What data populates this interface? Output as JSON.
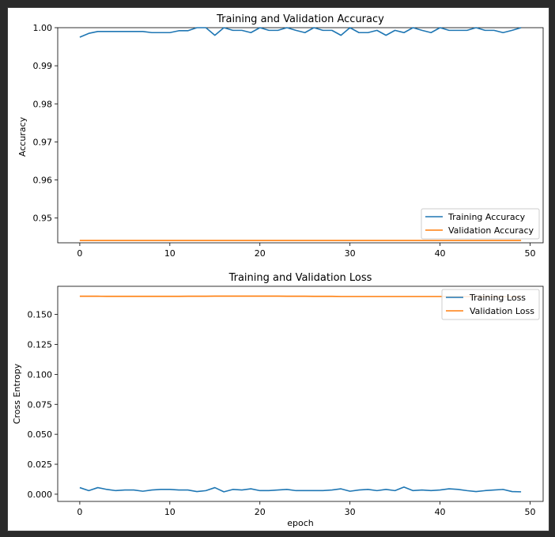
{
  "chart_data": [
    {
      "type": "line",
      "title": "Training and Validation Accuracy",
      "xlabel": "",
      "ylabel": "Accuracy",
      "xlim": [
        -2.45,
        51.45
      ],
      "ylim": [
        0.9435,
        1.0
      ],
      "xticks": [
        0,
        10,
        20,
        30,
        40,
        50
      ],
      "xtick_labels": [
        "0",
        "10",
        "20",
        "30",
        "40",
        "50"
      ],
      "yticks": [
        0.95,
        0.96,
        0.97,
        0.98,
        0.99,
        1.0
      ],
      "ytick_labels": [
        "0.95",
        "0.96",
        "0.97",
        "0.98",
        "0.99",
        "1.00"
      ],
      "grid": false,
      "legend_position": "lower-right",
      "x": [
        0,
        1,
        2,
        3,
        4,
        5,
        6,
        7,
        8,
        9,
        10,
        11,
        12,
        13,
        14,
        15,
        16,
        17,
        18,
        19,
        20,
        21,
        22,
        23,
        24,
        25,
        26,
        27,
        28,
        29,
        30,
        31,
        32,
        33,
        34,
        35,
        36,
        37,
        38,
        39,
        40,
        41,
        42,
        43,
        44,
        45,
        46,
        47,
        48,
        49
      ],
      "series": [
        {
          "name": "Training Accuracy",
          "color": "#1f77b4",
          "values": [
            0.9975,
            0.9985,
            0.999,
            0.999,
            0.999,
            0.999,
            0.999,
            0.999,
            0.9987,
            0.9987,
            0.9987,
            0.9992,
            0.9992,
            1.0,
            1.0,
            0.998,
            1.0,
            0.9993,
            0.9993,
            0.9987,
            1.0,
            0.9993,
            0.9993,
            1.0,
            0.9993,
            0.9987,
            1.0,
            0.9993,
            0.9993,
            0.998,
            1.0,
            0.9987,
            0.9987,
            0.9993,
            0.998,
            0.9993,
            0.9987,
            1.0,
            0.9993,
            0.9987,
            1.0,
            0.9993,
            0.9993,
            0.9993,
            1.0,
            0.9993,
            0.9993,
            0.9987,
            0.9993,
            1.0
          ]
        },
        {
          "name": "Validation Accuracy",
          "color": "#ff7f0e",
          "values": [
            0.9441,
            0.9441,
            0.9441,
            0.9441,
            0.9441,
            0.9441,
            0.9441,
            0.9441,
            0.9441,
            0.9441,
            0.9441,
            0.9441,
            0.9441,
            0.9441,
            0.9441,
            0.9441,
            0.9441,
            0.9441,
            0.9441,
            0.9441,
            0.9441,
            0.9441,
            0.9441,
            0.9441,
            0.9441,
            0.9441,
            0.9441,
            0.9441,
            0.9441,
            0.9441,
            0.9441,
            0.9441,
            0.9441,
            0.9441,
            0.9441,
            0.9441,
            0.9441,
            0.9441,
            0.9441,
            0.9441,
            0.9441,
            0.9441,
            0.9441,
            0.9441,
            0.9441,
            0.9441,
            0.9441,
            0.9441,
            0.9441,
            0.9441
          ]
        }
      ]
    },
    {
      "type": "line",
      "title": "Training and Validation Loss",
      "xlabel": "epoch",
      "ylabel": "Cross Entropy",
      "xlim": [
        -2.45,
        51.45
      ],
      "ylim": [
        -0.006,
        0.1735
      ],
      "xticks": [
        0,
        10,
        20,
        30,
        40,
        50
      ],
      "xtick_labels": [
        "0",
        "10",
        "20",
        "30",
        "40",
        "50"
      ],
      "yticks": [
        0.0,
        0.025,
        0.05,
        0.075,
        0.1,
        0.125,
        0.15
      ],
      "ytick_labels": [
        "0.000",
        "0.025",
        "0.050",
        "0.075",
        "0.100",
        "0.125",
        "0.150"
      ],
      "grid": false,
      "legend_position": "upper-right",
      "x": [
        0,
        1,
        2,
        3,
        4,
        5,
        6,
        7,
        8,
        9,
        10,
        11,
        12,
        13,
        14,
        15,
        16,
        17,
        18,
        19,
        20,
        21,
        22,
        23,
        24,
        25,
        26,
        27,
        28,
        29,
        30,
        31,
        32,
        33,
        34,
        35,
        36,
        37,
        38,
        39,
        40,
        41,
        42,
        43,
        44,
        45,
        46,
        47,
        48,
        49
      ],
      "series": [
        {
          "name": "Training Loss",
          "color": "#1f77b4",
          "values": [
            0.0055,
            0.003,
            0.0055,
            0.004,
            0.003,
            0.0035,
            0.0035,
            0.0025,
            0.0035,
            0.004,
            0.004,
            0.0035,
            0.0035,
            0.0022,
            0.003,
            0.0055,
            0.002,
            0.004,
            0.0035,
            0.0045,
            0.003,
            0.003,
            0.0035,
            0.004,
            0.003,
            0.003,
            0.003,
            0.003,
            0.0035,
            0.0045,
            0.0025,
            0.0035,
            0.004,
            0.003,
            0.004,
            0.003,
            0.006,
            0.003,
            0.0035,
            0.003,
            0.0035,
            0.0045,
            0.004,
            0.003,
            0.0022,
            0.003,
            0.0035,
            0.004,
            0.0022,
            0.002
          ]
        },
        {
          "name": "Validation Loss",
          "color": "#ff7f0e",
          "values": [
            0.1652,
            0.1652,
            0.1652,
            0.1651,
            0.1651,
            0.1651,
            0.1651,
            0.1651,
            0.1651,
            0.1651,
            0.1651,
            0.1651,
            0.1652,
            0.1652,
            0.1652,
            0.1653,
            0.1653,
            0.1653,
            0.1653,
            0.1653,
            0.1653,
            0.1653,
            0.1653,
            0.1652,
            0.1652,
            0.1652,
            0.1651,
            0.1651,
            0.1651,
            0.165,
            0.165,
            0.165,
            0.165,
            0.165,
            0.165,
            0.165,
            0.165,
            0.165,
            0.165,
            0.165,
            0.165,
            0.165,
            0.1649,
            0.1649,
            0.1649,
            0.1648,
            0.1648,
            0.1648,
            0.1648,
            0.1648
          ]
        }
      ]
    }
  ]
}
